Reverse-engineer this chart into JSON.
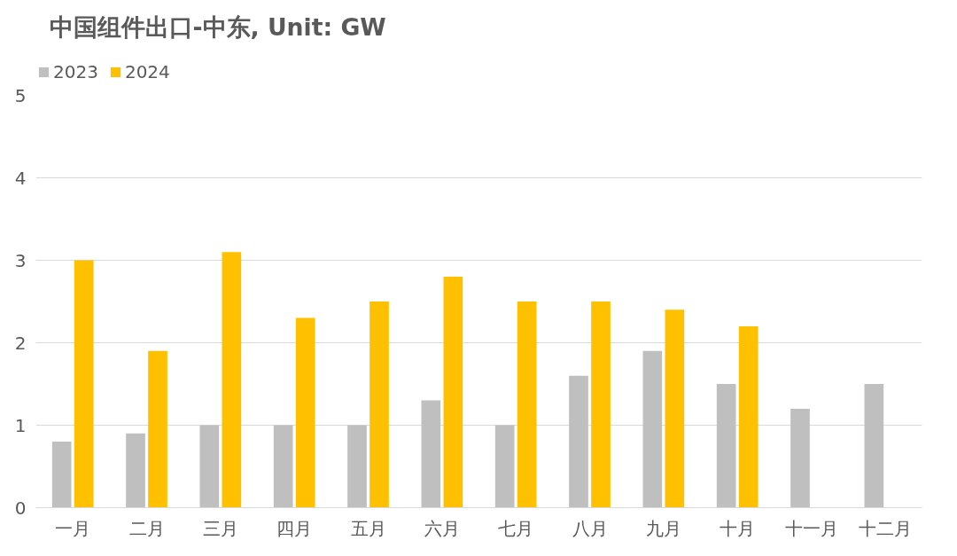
{
  "chart_data": {
    "type": "bar",
    "title": "中国组件出口-中东, Unit: GW",
    "categories": [
      "一月",
      "二月",
      "三月",
      "四月",
      "五月",
      "六月",
      "七月",
      "八月",
      "九月",
      "十月",
      "十一月",
      "十二月"
    ],
    "series": [
      {
        "name": "2023",
        "color": "#bfbfbf",
        "values": [
          0.8,
          0.9,
          1.0,
          1.0,
          1.0,
          1.3,
          1.0,
          1.6,
          1.9,
          1.5,
          1.2,
          1.5
        ]
      },
      {
        "name": "2024",
        "color": "#ffc000",
        "values": [
          3.0,
          1.9,
          3.1,
          2.3,
          2.5,
          2.8,
          2.5,
          2.5,
          2.4,
          2.2,
          null,
          null
        ]
      }
    ],
    "ylim": [
      0,
      5
    ],
    "yticks": [
      0,
      1,
      2,
      3,
      4,
      5
    ],
    "grid": "y",
    "legend": "top left"
  }
}
